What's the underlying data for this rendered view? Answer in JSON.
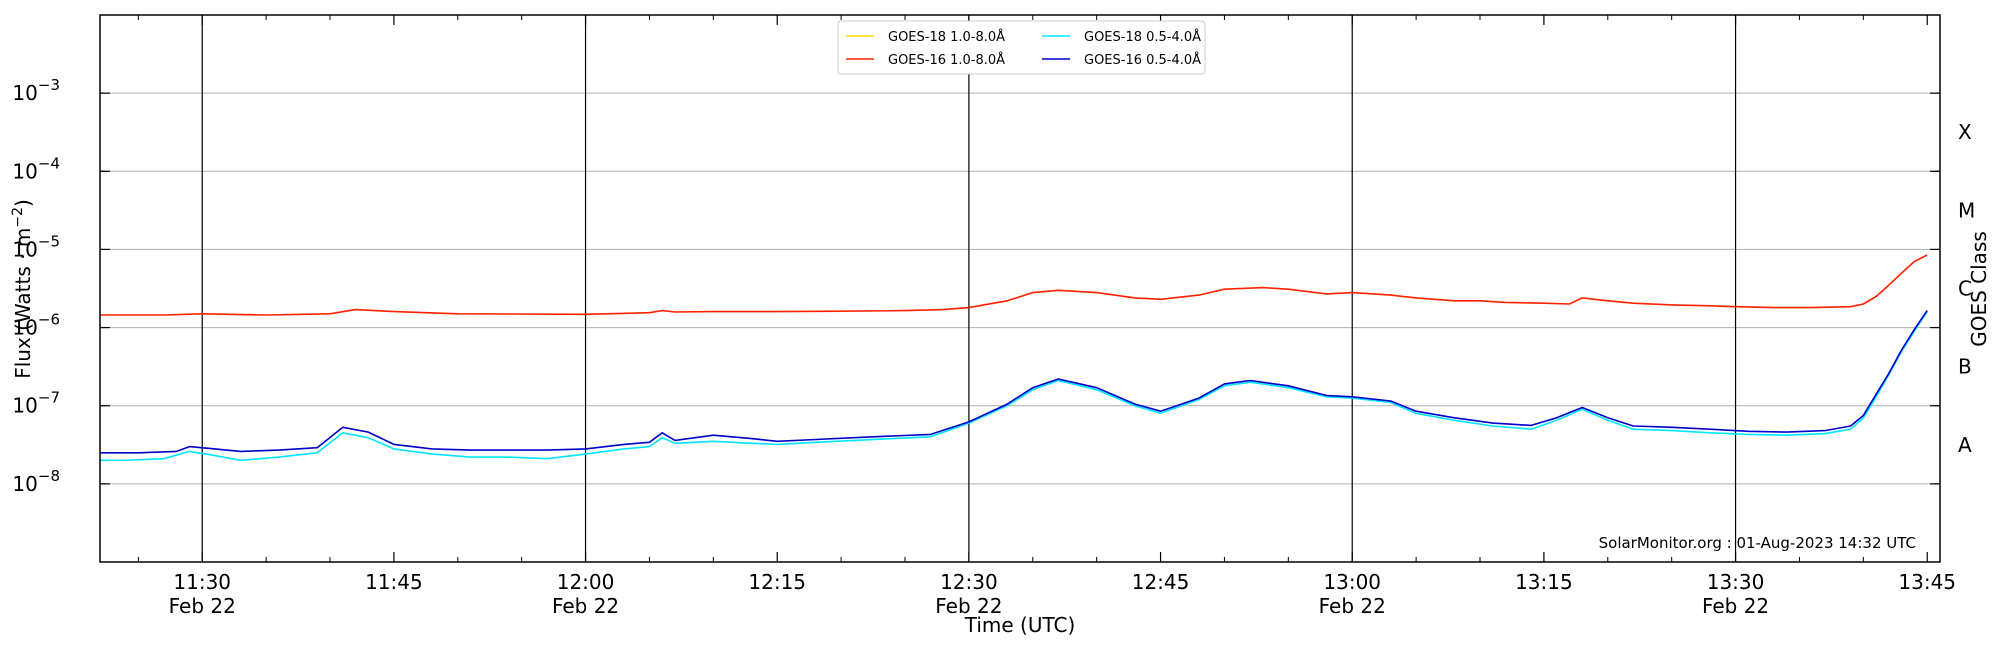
{
  "chart_data": {
    "type": "line",
    "xlabel": "Time (UTC)",
    "ylabel": "Flux (Watts · m",
    "ylabel_sup": "−2",
    "ylabel_close": ")",
    "right_label": "GOES Class",
    "annotation": "SolarMonitor.org : 01-Aug-2023 14:32 UTC",
    "xlim": [
      "11:22",
      "13:46"
    ],
    "ylim": [
      1e-09,
      0.01
    ],
    "y_scale": "log",
    "grid": "horizontal",
    "legend_position": "top-center",
    "x_ticks": [
      {
        "time": "11:30",
        "label": "11:30",
        "sub": "Feb 22",
        "vline": true
      },
      {
        "time": "11:45",
        "label": "11:45",
        "sub": "",
        "vline": false
      },
      {
        "time": "12:00",
        "label": "12:00",
        "sub": "Feb 22",
        "vline": true
      },
      {
        "time": "12:15",
        "label": "12:15",
        "sub": "",
        "vline": false
      },
      {
        "time": "12:30",
        "label": "12:30",
        "sub": "Feb 22",
        "vline": true
      },
      {
        "time": "12:45",
        "label": "12:45",
        "sub": "",
        "vline": false
      },
      {
        "time": "13:00",
        "label": "13:00",
        "sub": "Feb 22",
        "vline": true
      },
      {
        "time": "13:15",
        "label": "13:15",
        "sub": "",
        "vline": false
      },
      {
        "time": "13:30",
        "label": "13:30",
        "sub": "Feb 22",
        "vline": true
      },
      {
        "time": "13:45",
        "label": "13:45",
        "sub": "",
        "vline": false
      }
    ],
    "y_ticks": [
      {
        "exp": -8,
        "label": "10",
        "sup": "−8"
      },
      {
        "exp": -7,
        "label": "10",
        "sup": "−7"
      },
      {
        "exp": -6,
        "label": "10",
        "sup": "−6"
      },
      {
        "exp": -5,
        "label": "10",
        "sup": "−5"
      },
      {
        "exp": -4,
        "label": "10",
        "sup": "−4"
      },
      {
        "exp": -3,
        "label": "10",
        "sup": "−3"
      }
    ],
    "goes_classes": [
      {
        "label": "A",
        "exp": -7.5
      },
      {
        "label": "B",
        "exp": -6.5
      },
      {
        "label": "C",
        "exp": -5.5
      },
      {
        "label": "M",
        "exp": -4.5
      },
      {
        "label": "X",
        "exp": -3.5
      }
    ],
    "series": [
      {
        "name": "GOES-18 1.0-8.0Å",
        "color": "#ffd700",
        "points": []
      },
      {
        "name": "GOES-16 1.0-8.0Å",
        "color": "#ff2200",
        "points": [
          [
            "11:22",
            1.45e-06
          ],
          [
            "11:27",
            1.45e-06
          ],
          [
            "11:30",
            1.5e-06
          ],
          [
            "11:35",
            1.45e-06
          ],
          [
            "11:40",
            1.5e-06
          ],
          [
            "11:42",
            1.7e-06
          ],
          [
            "11:45",
            1.6e-06
          ],
          [
            "11:50",
            1.5e-06
          ],
          [
            "12:00",
            1.48e-06
          ],
          [
            "12:05",
            1.55e-06
          ],
          [
            "12:06",
            1.65e-06
          ],
          [
            "12:07",
            1.58e-06
          ],
          [
            "12:10",
            1.6e-06
          ],
          [
            "12:15",
            1.6e-06
          ],
          [
            "12:20",
            1.62e-06
          ],
          [
            "12:25",
            1.65e-06
          ],
          [
            "12:28",
            1.7e-06
          ],
          [
            "12:30",
            1.8e-06
          ],
          [
            "12:33",
            2.2e-06
          ],
          [
            "12:35",
            2.8e-06
          ],
          [
            "12:37",
            3e-06
          ],
          [
            "12:40",
            2.8e-06
          ],
          [
            "12:43",
            2.4e-06
          ],
          [
            "12:45",
            2.3e-06
          ],
          [
            "12:48",
            2.6e-06
          ],
          [
            "12:50",
            3.1e-06
          ],
          [
            "12:53",
            3.25e-06
          ],
          [
            "12:55",
            3.1e-06
          ],
          [
            "12:58",
            2.7e-06
          ],
          [
            "13:00",
            2.8e-06
          ],
          [
            "13:03",
            2.6e-06
          ],
          [
            "13:05",
            2.4e-06
          ],
          [
            "13:08",
            2.2e-06
          ],
          [
            "13:10",
            2.2e-06
          ],
          [
            "13:12",
            2.1e-06
          ],
          [
            "13:15",
            2.05e-06
          ],
          [
            "13:17",
            2e-06
          ],
          [
            "13:18",
            2.4e-06
          ],
          [
            "13:20",
            2.2e-06
          ],
          [
            "13:22",
            2.05e-06
          ],
          [
            "13:25",
            1.95e-06
          ],
          [
            "13:28",
            1.9e-06
          ],
          [
            "13:30",
            1.85e-06
          ],
          [
            "13:33",
            1.8e-06
          ],
          [
            "13:36",
            1.8e-06
          ],
          [
            "13:39",
            1.85e-06
          ],
          [
            "13:40",
            2e-06
          ],
          [
            "13:41",
            2.5e-06
          ],
          [
            "13:42",
            3.5e-06
          ],
          [
            "13:43",
            5e-06
          ],
          [
            "13:44",
            7e-06
          ],
          [
            "13:45",
            8.5e-06
          ]
        ]
      },
      {
        "name": "GOES-18 0.5-4.0Å",
        "color": "#00e5ff",
        "points": [
          [
            "11:22",
            2e-08
          ],
          [
            "11:24",
            2e-08
          ],
          [
            "11:27",
            2.1e-08
          ],
          [
            "11:29",
            2.6e-08
          ],
          [
            "11:31",
            2.3e-08
          ],
          [
            "11:33",
            2e-08
          ],
          [
            "11:36",
            2.2e-08
          ],
          [
            "11:39",
            2.5e-08
          ],
          [
            "11:41",
            4.5e-08
          ],
          [
            "11:43",
            3.9e-08
          ],
          [
            "11:45",
            2.8e-08
          ],
          [
            "11:48",
            2.4e-08
          ],
          [
            "11:51",
            2.2e-08
          ],
          [
            "11:54",
            2.2e-08
          ],
          [
            "11:57",
            2.1e-08
          ],
          [
            "12:00",
            2.4e-08
          ],
          [
            "12:03",
            2.8e-08
          ],
          [
            "12:05",
            3e-08
          ],
          [
            "12:06",
            3.9e-08
          ],
          [
            "12:07",
            3.3e-08
          ],
          [
            "12:10",
            3.5e-08
          ],
          [
            "12:13",
            3.3e-08
          ],
          [
            "12:15",
            3.2e-08
          ],
          [
            "12:18",
            3.4e-08
          ],
          [
            "12:21",
            3.6e-08
          ],
          [
            "12:24",
            3.8e-08
          ],
          [
            "12:27",
            4e-08
          ],
          [
            "12:30",
            6e-08
          ],
          [
            "12:33",
            1e-07
          ],
          [
            "12:35",
            1.6e-07
          ],
          [
            "12:37",
            2.1e-07
          ],
          [
            "12:40",
            1.6e-07
          ],
          [
            "12:43",
            1e-07
          ],
          [
            "12:45",
            8e-08
          ],
          [
            "12:48",
            1.2e-07
          ],
          [
            "12:50",
            1.8e-07
          ],
          [
            "12:52",
            2e-07
          ],
          [
            "12:55",
            1.7e-07
          ],
          [
            "12:58",
            1.3e-07
          ],
          [
            "13:00",
            1.25e-07
          ],
          [
            "13:03",
            1.1e-07
          ],
          [
            "13:05",
            8e-08
          ],
          [
            "13:08",
            6.5e-08
          ],
          [
            "13:11",
            5.5e-08
          ],
          [
            "13:14",
            5e-08
          ],
          [
            "13:16",
            6.5e-08
          ],
          [
            "13:18",
            9e-08
          ],
          [
            "13:20",
            6.5e-08
          ],
          [
            "13:22",
            5e-08
          ],
          [
            "13:25",
            4.8e-08
          ],
          [
            "13:28",
            4.5e-08
          ],
          [
            "13:31",
            4.3e-08
          ],
          [
            "13:34",
            4.2e-08
          ],
          [
            "13:37",
            4.4e-08
          ],
          [
            "13:39",
            5e-08
          ],
          [
            "13:40",
            7e-08
          ],
          [
            "13:41",
            1.3e-07
          ],
          [
            "13:42",
            2.5e-07
          ],
          [
            "13:43",
            5e-07
          ],
          [
            "13:44",
            9e-07
          ],
          [
            "13:45",
            1.6e-06
          ]
        ]
      },
      {
        "name": "GOES-16 0.5-4.0Å",
        "color": "#0000cc",
        "points": [
          [
            "11:22",
            2.5e-08
          ],
          [
            "11:25",
            2.5e-08
          ],
          [
            "11:28",
            2.6e-08
          ],
          [
            "11:29",
            3e-08
          ],
          [
            "11:31",
            2.8e-08
          ],
          [
            "11:33",
            2.6e-08
          ],
          [
            "11:36",
            2.7e-08
          ],
          [
            "11:39",
            2.9e-08
          ],
          [
            "11:41",
            5.3e-08
          ],
          [
            "11:43",
            4.6e-08
          ],
          [
            "11:45",
            3.2e-08
          ],
          [
            "11:48",
            2.8e-08
          ],
          [
            "11:51",
            2.7e-08
          ],
          [
            "11:54",
            2.7e-08
          ],
          [
            "11:57",
            2.7e-08
          ],
          [
            "12:00",
            2.8e-08
          ],
          [
            "12:03",
            3.2e-08
          ],
          [
            "12:05",
            3.4e-08
          ],
          [
            "12:06",
            4.5e-08
          ],
          [
            "12:07",
            3.6e-08
          ],
          [
            "12:10",
            4.2e-08
          ],
          [
            "12:13",
            3.8e-08
          ],
          [
            "12:15",
            3.5e-08
          ],
          [
            "12:18",
            3.7e-08
          ],
          [
            "12:21",
            3.9e-08
          ],
          [
            "12:24",
            4.1e-08
          ],
          [
            "12:27",
            4.3e-08
          ],
          [
            "12:30",
            6.2e-08
          ],
          [
            "12:33",
            1.05e-07
          ],
          [
            "12:35",
            1.7e-07
          ],
          [
            "12:37",
            2.2e-07
          ],
          [
            "12:40",
            1.7e-07
          ],
          [
            "12:43",
            1.05e-07
          ],
          [
            "12:45",
            8.5e-08
          ],
          [
            "12:48",
            1.25e-07
          ],
          [
            "12:50",
            1.9e-07
          ],
          [
            "12:52",
            2.1e-07
          ],
          [
            "12:55",
            1.8e-07
          ],
          [
            "12:58",
            1.35e-07
          ],
          [
            "13:00",
            1.3e-07
          ],
          [
            "13:03",
            1.15e-07
          ],
          [
            "13:05",
            8.5e-08
          ],
          [
            "13:08",
            7e-08
          ],
          [
            "13:11",
            6e-08
          ],
          [
            "13:14",
            5.6e-08
          ],
          [
            "13:16",
            7e-08
          ],
          [
            "13:18",
            9.5e-08
          ],
          [
            "13:20",
            7e-08
          ],
          [
            "13:22",
            5.5e-08
          ],
          [
            "13:25",
            5.3e-08
          ],
          [
            "13:28",
            5e-08
          ],
          [
            "13:31",
            4.7e-08
          ],
          [
            "13:34",
            4.6e-08
          ],
          [
            "13:37",
            4.8e-08
          ],
          [
            "13:39",
            5.5e-08
          ],
          [
            "13:40",
            7.5e-08
          ],
          [
            "13:41",
            1.4e-07
          ],
          [
            "13:42",
            2.6e-07
          ],
          [
            "13:43",
            5.2e-07
          ],
          [
            "13:44",
            9.5e-07
          ],
          [
            "13:45",
            1.65e-06
          ]
        ]
      }
    ]
  }
}
